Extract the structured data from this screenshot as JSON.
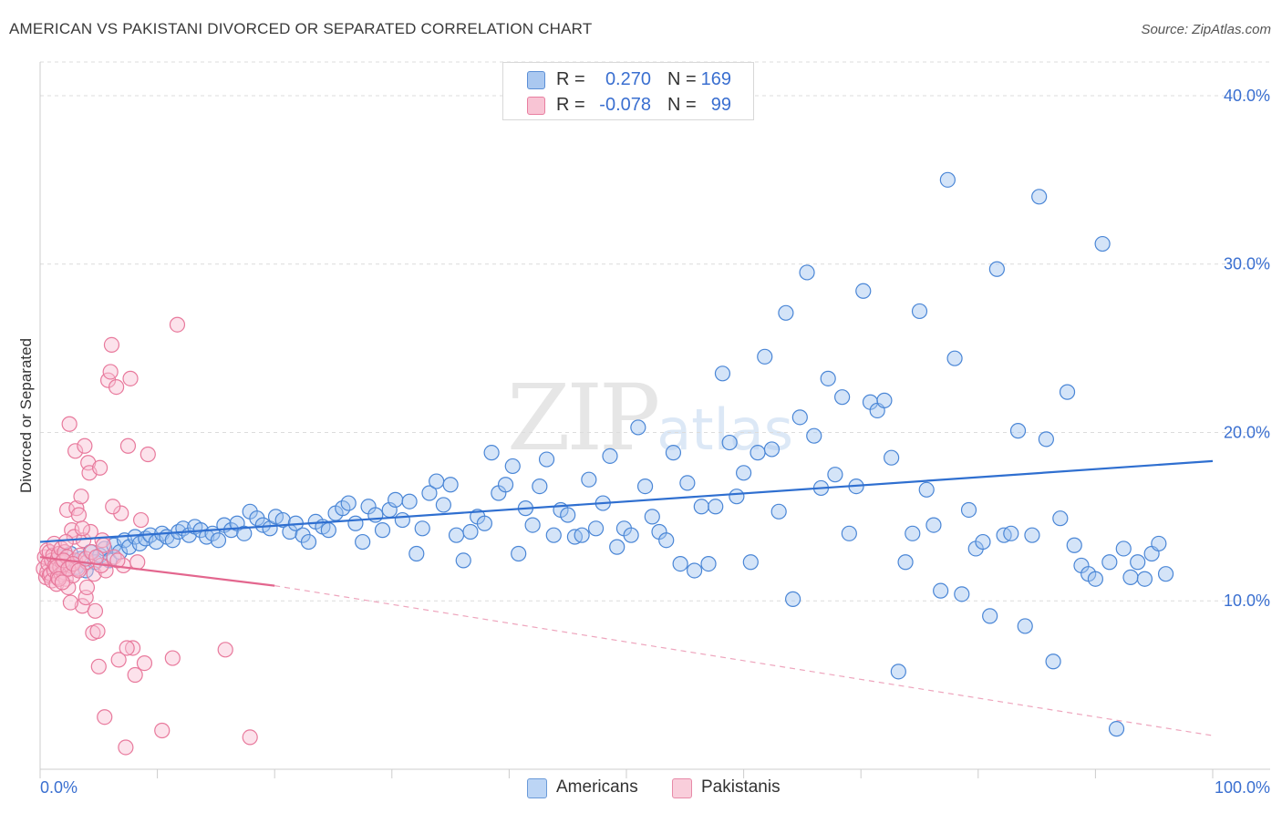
{
  "title": "AMERICAN VS PAKISTANI DIVORCED OR SEPARATED CORRELATION CHART",
  "source": "Source: ZipAtlas.com",
  "watermark": {
    "zip": "ZIP",
    "atlas": "atlas"
  },
  "legend_top": [
    {
      "r_label": "R =",
      "r_value": "0.270",
      "n_label": "N =",
      "n_value": "169",
      "color": "#aac8f0",
      "border": "#5b8fd6"
    },
    {
      "r_label": "R =",
      "r_value": "-0.078",
      "n_label": "N =",
      "n_value": "99",
      "color": "#f8c4d4",
      "border": "#e87ea0"
    }
  ],
  "legend_bottom": [
    {
      "label": "Americans",
      "color": "#bcd5f5",
      "border": "#6a9ad8"
    },
    {
      "label": "Pakistanis",
      "color": "#f9cedb",
      "border": "#e78aa8"
    }
  ],
  "colors": {
    "blue_dot": "#4a86d6",
    "blue_line": "#2f6fd0",
    "pink_dot": "#e8799c",
    "pink_line": "#e3668e",
    "tick_text": "#3a6fd0",
    "grid": "#dcdcdc"
  },
  "chart_data": {
    "type": "scatter",
    "title": "AMERICAN VS PAKISTANI DIVORCED OR SEPARATED CORRELATION CHART",
    "xlabel": "",
    "ylabel": "Divorced or Separated",
    "xlim": [
      0,
      100
    ],
    "ylim": [
      0,
      42
    ],
    "x_tick_labels": [
      "0.0%",
      "100.0%"
    ],
    "y_ticks": [
      10,
      20,
      30,
      40
    ],
    "y_tick_labels": [
      "10.0%",
      "20.0%",
      "30.0%",
      "40.0%"
    ],
    "grid": true,
    "series": [
      {
        "name": "Americans",
        "trend": {
          "x0": 0,
          "y0": 13.5,
          "x1": 100,
          "y1": 18.3
        },
        "points": [
          [
            1.2,
            12.2
          ],
          [
            1.8,
            12.6
          ],
          [
            2.2,
            11.9
          ],
          [
            2.6,
            12.8
          ],
          [
            3.1,
            12.0
          ],
          [
            3.5,
            12.5
          ],
          [
            3.9,
            11.8
          ],
          [
            4.3,
            12.9
          ],
          [
            4.7,
            12.3
          ],
          [
            5.1,
            12.7
          ],
          [
            5.5,
            13.1
          ],
          [
            5.9,
            12.4
          ],
          [
            6.3,
            13.3
          ],
          [
            6.8,
            12.9
          ],
          [
            7.2,
            13.6
          ],
          [
            7.6,
            13.2
          ],
          [
            8.1,
            13.8
          ],
          [
            8.5,
            13.4
          ],
          [
            9.0,
            13.7
          ],
          [
            9.4,
            13.9
          ],
          [
            9.9,
            13.5
          ],
          [
            10.4,
            14.0
          ],
          [
            10.8,
            13.8
          ],
          [
            11.3,
            13.6
          ],
          [
            11.8,
            14.1
          ],
          [
            12.2,
            14.3
          ],
          [
            12.7,
            13.9
          ],
          [
            13.2,
            14.4
          ],
          [
            13.7,
            14.2
          ],
          [
            14.2,
            13.8
          ],
          [
            14.7,
            14.0
          ],
          [
            15.2,
            13.6
          ],
          [
            15.7,
            14.5
          ],
          [
            16.3,
            14.2
          ],
          [
            16.8,
            14.6
          ],
          [
            17.4,
            14.0
          ],
          [
            17.9,
            15.3
          ],
          [
            18.5,
            14.9
          ],
          [
            19.0,
            14.5
          ],
          [
            19.6,
            14.3
          ],
          [
            20.1,
            15.0
          ],
          [
            20.7,
            14.8
          ],
          [
            21.3,
            14.1
          ],
          [
            21.8,
            14.6
          ],
          [
            22.4,
            13.9
          ],
          [
            22.9,
            13.5
          ],
          [
            23.5,
            14.7
          ],
          [
            24.1,
            14.4
          ],
          [
            24.6,
            14.2
          ],
          [
            25.2,
            15.2
          ],
          [
            25.8,
            15.5
          ],
          [
            26.3,
            15.8
          ],
          [
            26.9,
            14.6
          ],
          [
            27.5,
            13.5
          ],
          [
            28.0,
            15.6
          ],
          [
            28.6,
            15.1
          ],
          [
            29.2,
            14.2
          ],
          [
            29.8,
            15.4
          ],
          [
            30.3,
            16.0
          ],
          [
            30.9,
            14.8
          ],
          [
            31.5,
            15.9
          ],
          [
            32.1,
            12.8
          ],
          [
            32.6,
            14.3
          ],
          [
            33.2,
            16.4
          ],
          [
            33.8,
            17.1
          ],
          [
            34.4,
            15.7
          ],
          [
            35.0,
            16.9
          ],
          [
            35.5,
            13.9
          ],
          [
            36.1,
            12.4
          ],
          [
            36.7,
            14.1
          ],
          [
            37.3,
            15.0
          ],
          [
            37.9,
            14.6
          ],
          [
            38.5,
            18.8
          ],
          [
            39.1,
            16.4
          ],
          [
            39.7,
            16.9
          ],
          [
            40.3,
            18.0
          ],
          [
            40.8,
            12.8
          ],
          [
            41.4,
            15.5
          ],
          [
            42.0,
            14.5
          ],
          [
            42.6,
            16.8
          ],
          [
            43.2,
            18.4
          ],
          [
            43.8,
            13.9
          ],
          [
            44.4,
            15.4
          ],
          [
            45.0,
            15.1
          ],
          [
            45.6,
            13.8
          ],
          [
            46.2,
            13.9
          ],
          [
            46.8,
            17.2
          ],
          [
            47.4,
            14.3
          ],
          [
            48.0,
            15.8
          ],
          [
            48.6,
            18.6
          ],
          [
            49.2,
            13.2
          ],
          [
            49.8,
            14.3
          ],
          [
            50.4,
            13.9
          ],
          [
            51.0,
            20.3
          ],
          [
            51.6,
            16.8
          ],
          [
            52.2,
            15.0
          ],
          [
            52.8,
            14.1
          ],
          [
            53.4,
            13.6
          ],
          [
            54.0,
            18.8
          ],
          [
            54.6,
            12.2
          ],
          [
            55.2,
            17.0
          ],
          [
            55.8,
            11.8
          ],
          [
            56.4,
            15.6
          ],
          [
            57.0,
            12.2
          ],
          [
            57.6,
            15.6
          ],
          [
            58.2,
            23.5
          ],
          [
            58.8,
            19.4
          ],
          [
            59.4,
            16.2
          ],
          [
            60.0,
            17.6
          ],
          [
            60.6,
            12.3
          ],
          [
            61.2,
            18.8
          ],
          [
            61.8,
            24.5
          ],
          [
            62.4,
            19.0
          ],
          [
            63.0,
            15.3
          ],
          [
            63.6,
            27.1
          ],
          [
            64.2,
            10.1
          ],
          [
            64.8,
            20.9
          ],
          [
            65.4,
            29.5
          ],
          [
            66.0,
            19.8
          ],
          [
            66.6,
            16.7
          ],
          [
            67.2,
            23.2
          ],
          [
            67.8,
            17.5
          ],
          [
            68.4,
            22.1
          ],
          [
            69.0,
            14.0
          ],
          [
            69.6,
            16.8
          ],
          [
            70.2,
            28.4
          ],
          [
            70.8,
            21.8
          ],
          [
            71.4,
            21.3
          ],
          [
            72.0,
            21.9
          ],
          [
            72.6,
            18.5
          ],
          [
            73.2,
            5.8
          ],
          [
            73.8,
            12.3
          ],
          [
            74.4,
            14.0
          ],
          [
            75.0,
            27.2
          ],
          [
            75.6,
            16.6
          ],
          [
            76.2,
            14.5
          ],
          [
            76.8,
            10.6
          ],
          [
            77.4,
            35.0
          ],
          [
            78.0,
            24.4
          ],
          [
            78.6,
            10.4
          ],
          [
            79.2,
            15.4
          ],
          [
            79.8,
            13.1
          ],
          [
            80.4,
            13.5
          ],
          [
            81.0,
            9.1
          ],
          [
            81.6,
            29.7
          ],
          [
            82.2,
            13.9
          ],
          [
            82.8,
            14.0
          ],
          [
            83.4,
            20.1
          ],
          [
            84.0,
            8.5
          ],
          [
            84.6,
            13.9
          ],
          [
            85.2,
            34.0
          ],
          [
            85.8,
            19.6
          ],
          [
            86.4,
            6.4
          ],
          [
            87.0,
            14.9
          ],
          [
            87.6,
            22.4
          ],
          [
            88.2,
            13.3
          ],
          [
            88.8,
            12.1
          ],
          [
            89.4,
            11.6
          ],
          [
            90.0,
            11.3
          ],
          [
            90.6,
            31.2
          ],
          [
            91.2,
            12.3
          ],
          [
            91.8,
            2.4
          ],
          [
            92.4,
            13.1
          ],
          [
            93.0,
            11.4
          ],
          [
            93.6,
            12.3
          ],
          [
            94.2,
            11.3
          ],
          [
            94.8,
            12.8
          ],
          [
            95.4,
            13.4
          ],
          [
            96.0,
            11.6
          ]
        ]
      },
      {
        "name": "Pakistanis",
        "trend": {
          "x0": 0,
          "y0": 12.6,
          "x1": 20,
          "y1": 10.9,
          "dashed_to": {
            "x": 100,
            "y": 2.0
          }
        },
        "points": [
          [
            0.3,
            11.9
          ],
          [
            0.4,
            12.6
          ],
          [
            0.5,
            11.4
          ],
          [
            0.6,
            13.0
          ],
          [
            0.6,
            11.7
          ],
          [
            0.7,
            12.2
          ],
          [
            0.8,
            11.5
          ],
          [
            0.8,
            12.9
          ],
          [
            0.9,
            11.6
          ],
          [
            1.0,
            12.4
          ],
          [
            1.0,
            11.2
          ],
          [
            1.1,
            12.7
          ],
          [
            1.2,
            11.8
          ],
          [
            1.2,
            13.4
          ],
          [
            1.3,
            12.1
          ],
          [
            1.4,
            11.0
          ],
          [
            1.5,
            12.5
          ],
          [
            1.5,
            11.4
          ],
          [
            1.6,
            12.8
          ],
          [
            1.7,
            12.0
          ],
          [
            1.8,
            11.6
          ],
          [
            1.8,
            13.1
          ],
          [
            1.9,
            12.3
          ],
          [
            2.0,
            11.7
          ],
          [
            2.1,
            12.9
          ],
          [
            2.2,
            11.3
          ],
          [
            2.3,
            12.6
          ],
          [
            2.3,
            15.4
          ],
          [
            2.4,
            10.8
          ],
          [
            2.5,
            20.5
          ],
          [
            2.6,
            12.1
          ],
          [
            2.7,
            14.2
          ],
          [
            2.8,
            11.5
          ],
          [
            2.9,
            13.8
          ],
          [
            3.0,
            18.9
          ],
          [
            3.0,
            12.4
          ],
          [
            3.1,
            15.5
          ],
          [
            3.2,
            11.9
          ],
          [
            3.3,
            15.1
          ],
          [
            3.4,
            12.7
          ],
          [
            3.5,
            16.2
          ],
          [
            3.6,
            9.7
          ],
          [
            3.7,
            13.6
          ],
          [
            3.8,
            19.2
          ],
          [
            3.9,
            10.2
          ],
          [
            4.0,
            12.3
          ],
          [
            4.1,
            18.2
          ],
          [
            4.2,
            17.6
          ],
          [
            4.3,
            14.1
          ],
          [
            4.5,
            8.1
          ],
          [
            4.6,
            11.6
          ],
          [
            4.7,
            9.4
          ],
          [
            4.9,
            8.2
          ],
          [
            5.0,
            6.1
          ],
          [
            5.1,
            17.9
          ],
          [
            5.3,
            13.6
          ],
          [
            5.5,
            3.1
          ],
          [
            5.6,
            11.8
          ],
          [
            5.8,
            23.1
          ],
          [
            6.0,
            23.6
          ],
          [
            6.1,
            25.2
          ],
          [
            6.3,
            12.6
          ],
          [
            6.5,
            22.7
          ],
          [
            6.7,
            6.5
          ],
          [
            6.9,
            15.2
          ],
          [
            7.1,
            12.1
          ],
          [
            7.3,
            1.3
          ],
          [
            7.5,
            19.2
          ],
          [
            7.7,
            23.2
          ],
          [
            7.9,
            7.2
          ],
          [
            8.1,
            5.6
          ],
          [
            8.3,
            12.3
          ],
          [
            8.6,
            14.8
          ],
          [
            8.9,
            6.3
          ],
          [
            9.2,
            18.7
          ],
          [
            10.4,
            2.3
          ],
          [
            11.3,
            6.6
          ],
          [
            11.7,
            26.4
          ],
          [
            15.8,
            7.1
          ],
          [
            17.9,
            1.9
          ],
          [
            1.4,
            12.0
          ],
          [
            1.6,
            11.3
          ],
          [
            2.0,
            12.4
          ],
          [
            2.4,
            11.9
          ],
          [
            2.8,
            12.2
          ],
          [
            3.3,
            11.8
          ],
          [
            3.9,
            12.5
          ],
          [
            4.4,
            12.9
          ],
          [
            5.2,
            12.1
          ],
          [
            2.2,
            13.5
          ],
          [
            3.6,
            14.3
          ],
          [
            2.6,
            9.9
          ],
          [
            4.0,
            10.8
          ],
          [
            5.4,
            13.3
          ],
          [
            6.6,
            12.4
          ],
          [
            1.9,
            11.1
          ],
          [
            6.2,
            15.6
          ],
          [
            7.4,
            7.2
          ],
          [
            4.8,
            12.6
          ]
        ]
      }
    ]
  }
}
